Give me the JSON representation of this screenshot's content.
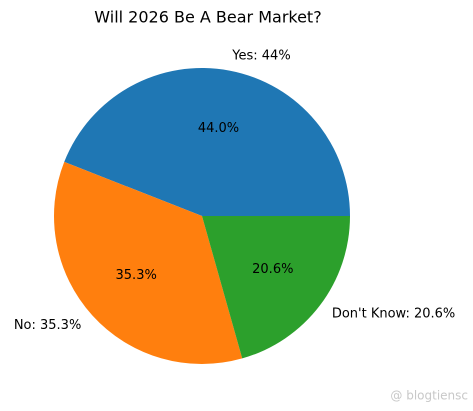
{
  "chart_data": {
    "type": "pie",
    "title": "Will 2026 Be A Bear Market?",
    "categories": [
      "Yes: 44%",
      "No: 35.3%",
      "Don't Know: 20.6%"
    ],
    "values": [
      44.0,
      35.3,
      20.6
    ],
    "value_labels": [
      "44.0%",
      "35.3%",
      "20.6%"
    ],
    "colors": [
      "#1f77b4",
      "#ff7f0e",
      "#2ca02c"
    ],
    "watermark": "@ blogtiensc"
  }
}
